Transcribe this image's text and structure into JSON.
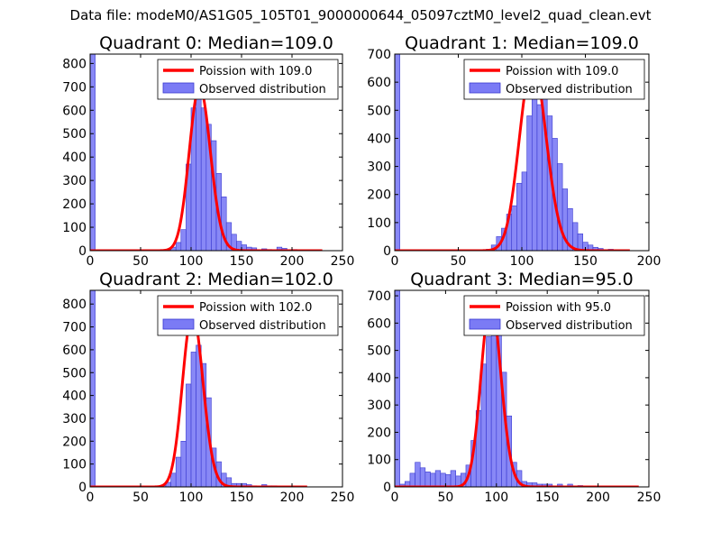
{
  "suptitle": "Data file: modeM0/AS1G05_105T01_9000000644_05097cztM0_level2_quad_clean.evt",
  "colors": {
    "bar_fill": "#7b7bf5",
    "bar_edge": "#3a3ad0",
    "poisson_line": "#ff0000",
    "frame": "#000000",
    "legend_edge": "#000000"
  },
  "chart_data": [
    {
      "type": "bar",
      "title": "Quadrant 0: Median=109.0",
      "xlabel": "",
      "ylabel": "",
      "xlim": [
        0,
        250
      ],
      "ylim": [
        0,
        840
      ],
      "xticks": [
        0,
        50,
        100,
        150,
        200,
        250
      ],
      "yticks": [
        0,
        100,
        200,
        300,
        400,
        500,
        600,
        700,
        800
      ],
      "bin_width": 5,
      "bar_x": [
        0,
        75,
        80,
        85,
        90,
        95,
        100,
        105,
        110,
        115,
        120,
        125,
        130,
        135,
        140,
        145,
        150,
        155,
        160,
        170,
        175,
        185,
        190,
        200
      ],
      "bar_y": [
        840,
        5,
        15,
        35,
        90,
        370,
        610,
        700,
        610,
        540,
        470,
        330,
        230,
        120,
        70,
        40,
        25,
        15,
        12,
        8,
        5,
        15,
        10,
        5
      ],
      "poisson": {
        "mean": 109.0,
        "peak": 700,
        "x_range": [
          0,
          230
        ]
      },
      "legend": [
        "Poission with 109.0",
        "Observed distribution"
      ],
      "legend_loc": "top-right"
    },
    {
      "type": "bar",
      "title": "Quadrant 1: Median=109.0",
      "xlabel": "",
      "ylabel": "",
      "xlim": [
        0,
        200
      ],
      "ylim": [
        0,
        700
      ],
      "xticks": [
        0,
        50,
        100,
        150,
        200
      ],
      "yticks": [
        0,
        100,
        200,
        300,
        400,
        500,
        600,
        700
      ],
      "bin_width": 4,
      "bar_x": [
        0,
        72,
        76,
        80,
        84,
        88,
        92,
        96,
        100,
        104,
        108,
        112,
        116,
        120,
        124,
        128,
        132,
        136,
        140,
        144,
        148,
        152,
        156,
        160,
        168
      ],
      "bar_y": [
        700,
        5,
        20,
        50,
        80,
        130,
        160,
        240,
        280,
        480,
        590,
        520,
        600,
        480,
        400,
        310,
        220,
        150,
        100,
        60,
        30,
        20,
        12,
        8,
        5
      ],
      "poisson": {
        "mean": 109.0,
        "peak": 670,
        "x_range": [
          0,
          185
        ]
      },
      "legend": [
        "Poission with 109.0",
        "Observed distribution"
      ],
      "legend_loc": "top-right"
    },
    {
      "type": "bar",
      "title": "Quadrant 2: Median=102.0",
      "xlabel": "",
      "ylabel": "",
      "xlim": [
        0,
        250
      ],
      "ylim": [
        0,
        860
      ],
      "xticks": [
        0,
        50,
        100,
        150,
        200,
        250
      ],
      "yticks": [
        0,
        100,
        200,
        300,
        400,
        500,
        600,
        700,
        800
      ],
      "bin_width": 5,
      "bar_x": [
        0,
        70,
        75,
        80,
        85,
        90,
        95,
        100,
        105,
        110,
        115,
        120,
        125,
        130,
        135,
        140,
        145,
        150,
        155,
        160,
        170,
        175,
        180
      ],
      "bar_y": [
        860,
        5,
        20,
        60,
        130,
        200,
        450,
        590,
        620,
        540,
        390,
        170,
        110,
        60,
        40,
        15,
        15,
        15,
        10,
        5,
        10,
        5,
        5
      ],
      "poisson": {
        "mean": 102.0,
        "peak": 760,
        "x_range": [
          0,
          215
        ]
      },
      "legend": [
        "Poission with 102.0",
        "Observed distribution"
      ],
      "legend_loc": "top-right"
    },
    {
      "type": "bar",
      "title": "Quadrant 3: Median=95.0",
      "xlabel": "",
      "ylabel": "",
      "xlim": [
        0,
        250
      ],
      "ylim": [
        0,
        720
      ],
      "xticks": [
        0,
        50,
        100,
        150,
        200,
        250
      ],
      "yticks": [
        0,
        100,
        200,
        300,
        400,
        500,
        600,
        700
      ],
      "bin_width": 5,
      "bar_x": [
        0,
        5,
        10,
        15,
        20,
        25,
        30,
        35,
        40,
        45,
        50,
        55,
        60,
        65,
        70,
        75,
        80,
        85,
        90,
        95,
        100,
        105,
        110,
        115,
        120,
        125,
        130,
        135,
        140,
        145,
        150,
        160,
        170,
        180
      ],
      "bar_y": [
        720,
        10,
        20,
        50,
        90,
        70,
        55,
        50,
        60,
        50,
        45,
        60,
        40,
        50,
        80,
        170,
        280,
        450,
        550,
        610,
        600,
        420,
        260,
        90,
        60,
        20,
        15,
        15,
        10,
        10,
        10,
        10,
        10,
        5
      ],
      "poisson": {
        "mean": 95.0,
        "peak": 680,
        "x_range": [
          0,
          240
        ]
      },
      "legend": [
        "Poission with 95.0",
        "Observed distribution"
      ],
      "legend_loc": "top-right"
    }
  ]
}
